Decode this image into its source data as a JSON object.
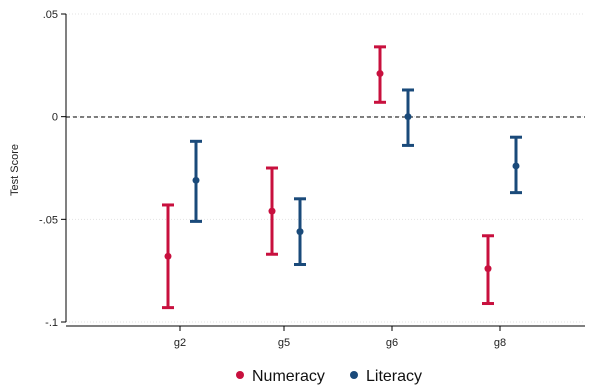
{
  "chart_data": {
    "type": "errorbar",
    "title": "",
    "xlabel": "",
    "ylabel": "Test Score",
    "ylim": [
      -0.1,
      0.05
    ],
    "yticks": [
      0.05,
      0,
      -0.05,
      -0.1
    ],
    "ytick_labels": [
      ".05",
      "0",
      "-.05",
      "-.1"
    ],
    "categories": [
      "g2",
      "g5",
      "g6",
      "g8"
    ],
    "reference_line": {
      "y": 0,
      "style": "dashed"
    },
    "grid": true,
    "legend": "bottom",
    "series": [
      {
        "name": "Numeracy",
        "color": "#c8103e",
        "values": [
          -0.068,
          -0.046,
          0.021,
          -0.074
        ],
        "ci_low": [
          -0.093,
          -0.067,
          0.007,
          -0.091
        ],
        "ci_high": [
          -0.043,
          -0.025,
          0.034,
          -0.058
        ]
      },
      {
        "name": "Literacy",
        "color": "#1a4a7a",
        "values": [
          -0.031,
          -0.056,
          0.0,
          -0.024
        ],
        "ci_low": [
          -0.051,
          -0.072,
          -0.014,
          -0.037
        ],
        "ci_high": [
          -0.012,
          -0.04,
          0.013,
          -0.01
        ]
      }
    ]
  }
}
